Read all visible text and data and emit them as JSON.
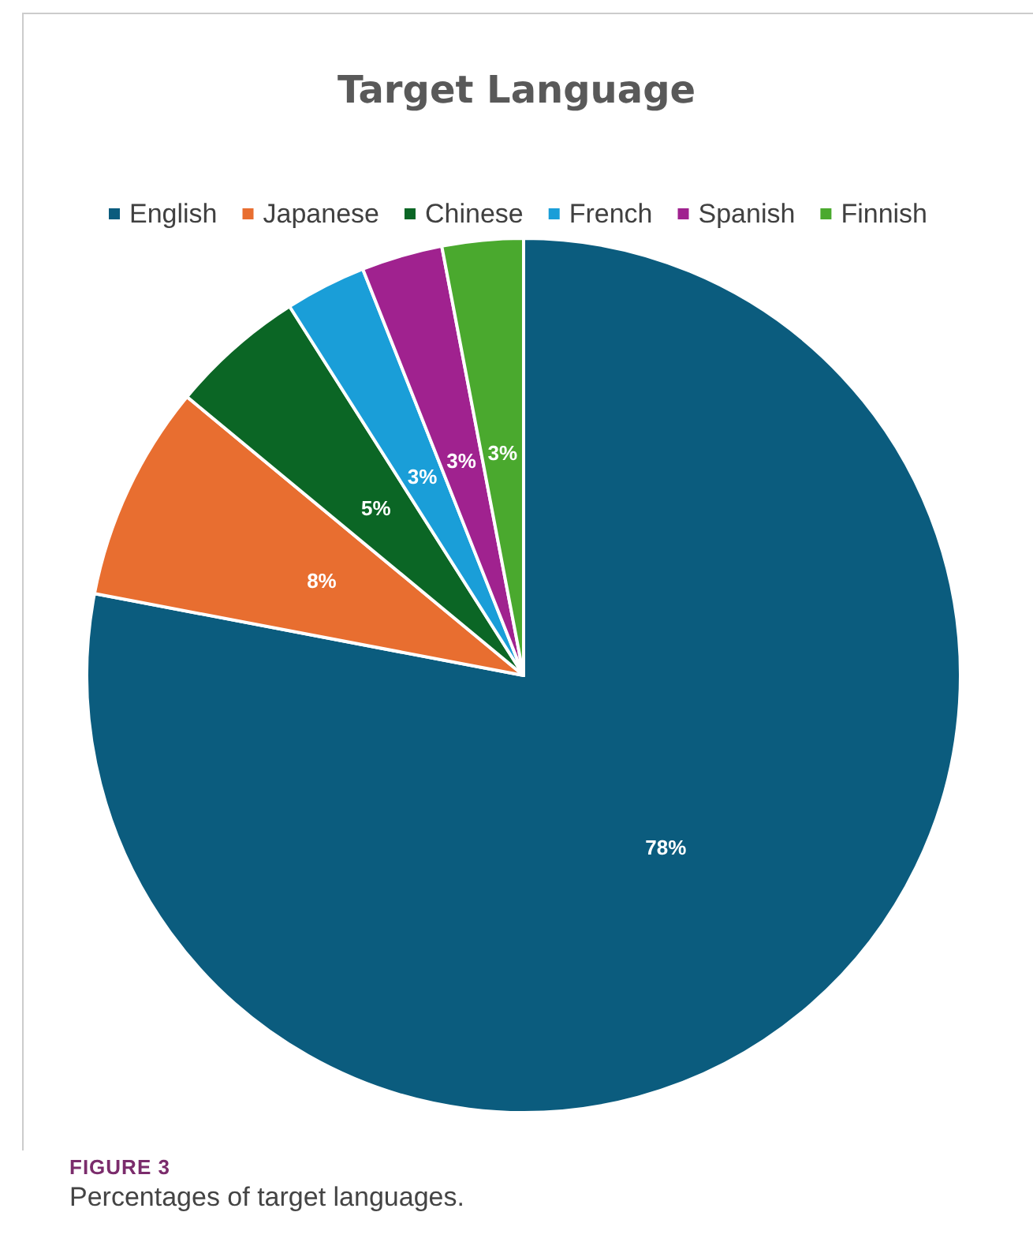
{
  "chart_data": {
    "type": "pie",
    "title": "Target Language",
    "categories": [
      "English",
      "Japanese",
      "Chinese",
      "French",
      "Spanish",
      "Finnish"
    ],
    "values": [
      78,
      8,
      5,
      3,
      3,
      3
    ],
    "colors": [
      "#0b5c7e",
      "#e86e30",
      "#0b6625",
      "#1a9ed8",
      "#a0228f",
      "#4aa92e"
    ],
    "value_labels": [
      "78%",
      "8%",
      "5%",
      "3%",
      "3%",
      "3%"
    ],
    "legend": "top",
    "annotations": [
      "FIGURE 3",
      "Percentages of target languages."
    ]
  }
}
